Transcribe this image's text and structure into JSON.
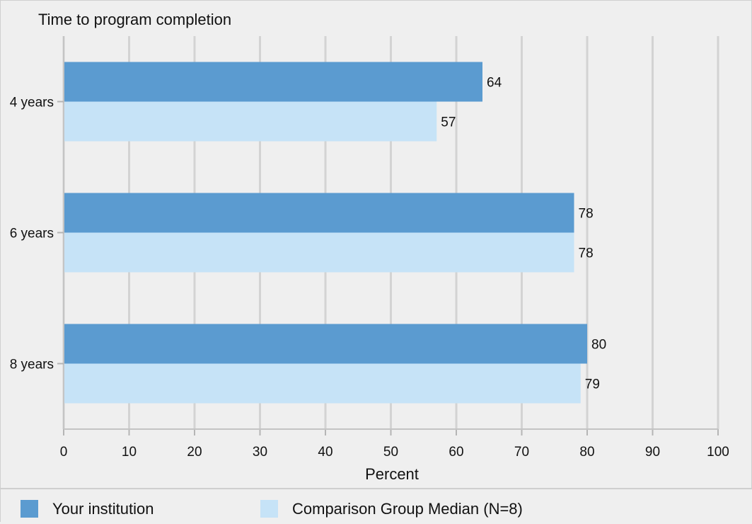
{
  "chart_data": {
    "type": "bar",
    "orientation": "horizontal",
    "title": "Time to program completion",
    "xlabel": "Percent",
    "ylabel": "",
    "categories": [
      "4 years",
      "6 years",
      "8 years"
    ],
    "series": [
      {
        "name": "Your institution",
        "values": [
          64,
          78,
          80
        ],
        "color": "#5b9bd0"
      },
      {
        "name": "Comparison Group Median (N=8)",
        "values": [
          57,
          78,
          79
        ],
        "color": "#c6e3f7"
      }
    ],
    "xlim": [
      0,
      100
    ],
    "ticks": [
      "0",
      "10",
      "20",
      "30",
      "40",
      "50",
      "60",
      "70",
      "80",
      "90",
      "100"
    ],
    "grid": true,
    "legend_position": "bottom"
  }
}
